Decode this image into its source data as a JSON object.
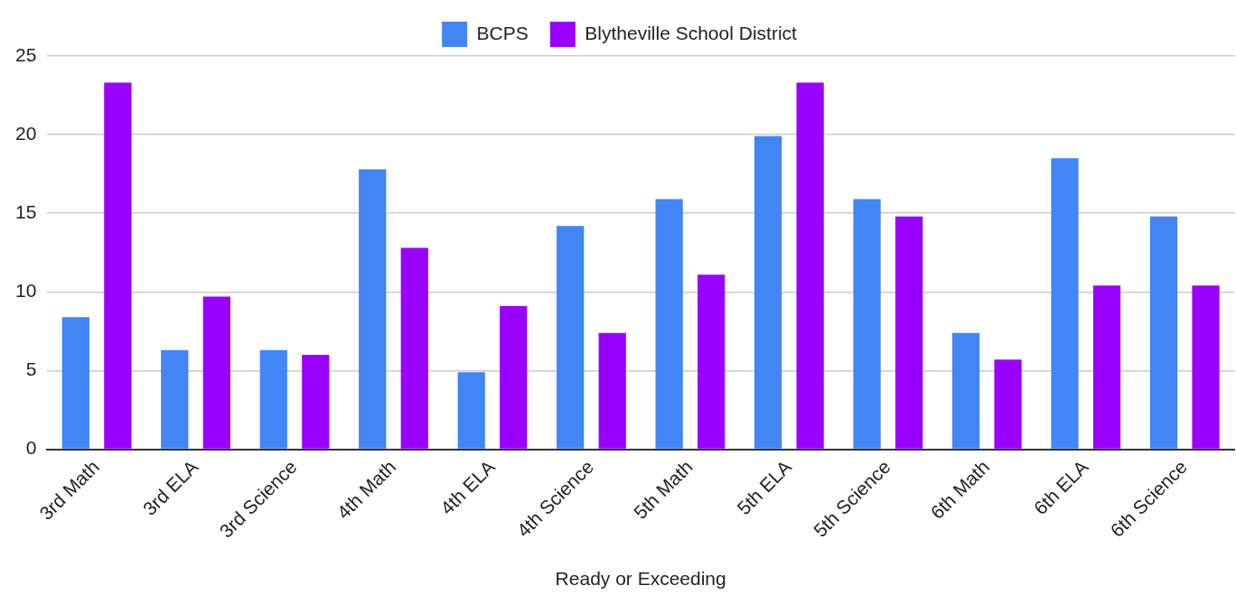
{
  "chart_data": {
    "type": "bar",
    "xlabel": "Ready or Exceeding",
    "categories": [
      "3rd Math",
      "3rd ELA",
      "3rd Science",
      "4th Math",
      "4th ELA",
      "4th Science",
      "5th Math",
      "5th ELA",
      "5th Science",
      "6th Math",
      "6th ELA",
      "6th Science"
    ],
    "series": [
      {
        "name": "BCPS",
        "color": "#4285f4",
        "values": [
          8.4,
          6.3,
          6.3,
          17.8,
          4.9,
          14.2,
          15.9,
          19.9,
          15.9,
          7.4,
          18.5,
          14.8
        ]
      },
      {
        "name": "Blytheville School District",
        "color": "#9900ff",
        "values": [
          23.3,
          9.7,
          6.0,
          12.8,
          9.1,
          7.4,
          11.1,
          23.3,
          14.8,
          5.7,
          10.4,
          10.4
        ]
      }
    ],
    "ylim": [
      0,
      25
    ],
    "yticks": [
      0,
      5,
      10,
      15,
      20,
      25
    ],
    "grid": "y",
    "legend": "top"
  }
}
